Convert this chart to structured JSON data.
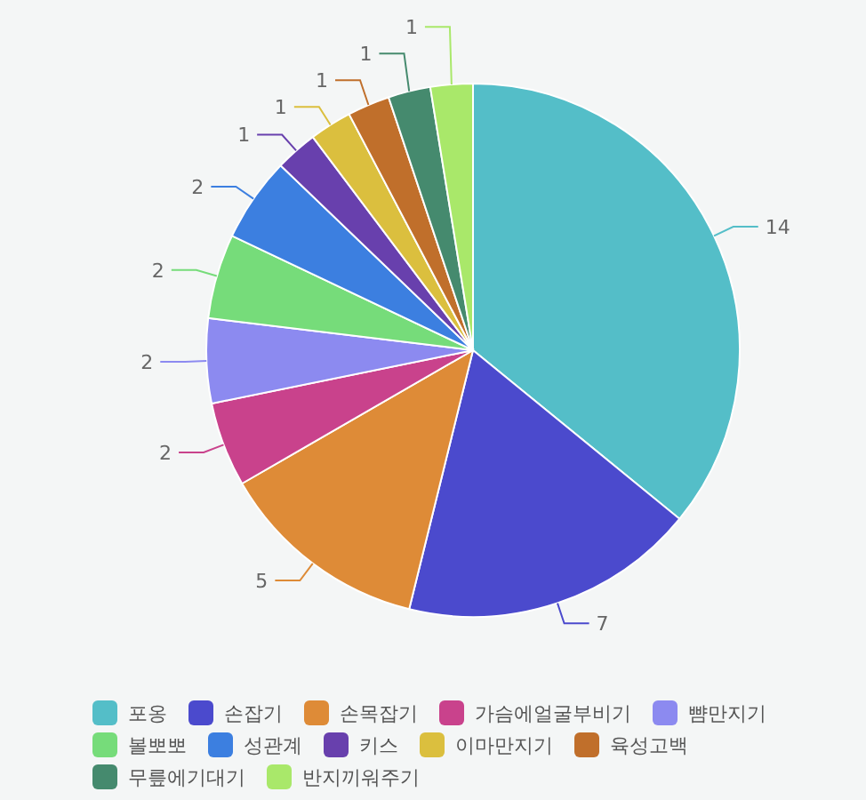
{
  "chart_data": {
    "type": "pie",
    "categories": [
      "포옹",
      "손잡기",
      "손목잡기",
      "가슴에얼굴부비기",
      "뺨만지기",
      "볼뽀뽀",
      "성관계",
      "키스",
      "이마만지기",
      "육성고백",
      "무릎에기대기",
      "반지끼워주기"
    ],
    "values": [
      14,
      7,
      5,
      2,
      2,
      2,
      2,
      1,
      1,
      1,
      1,
      1
    ],
    "colors": [
      "#54bec8",
      "#4b4acd",
      "#de8b37",
      "#c9428c",
      "#8c8af0",
      "#76dc7a",
      "#3c7fe0",
      "#6840ad",
      "#dbbf3e",
      "#c06f2b",
      "#458a6e",
      "#a9e86a"
    ],
    "data_labels": true,
    "legend": "bottom"
  }
}
